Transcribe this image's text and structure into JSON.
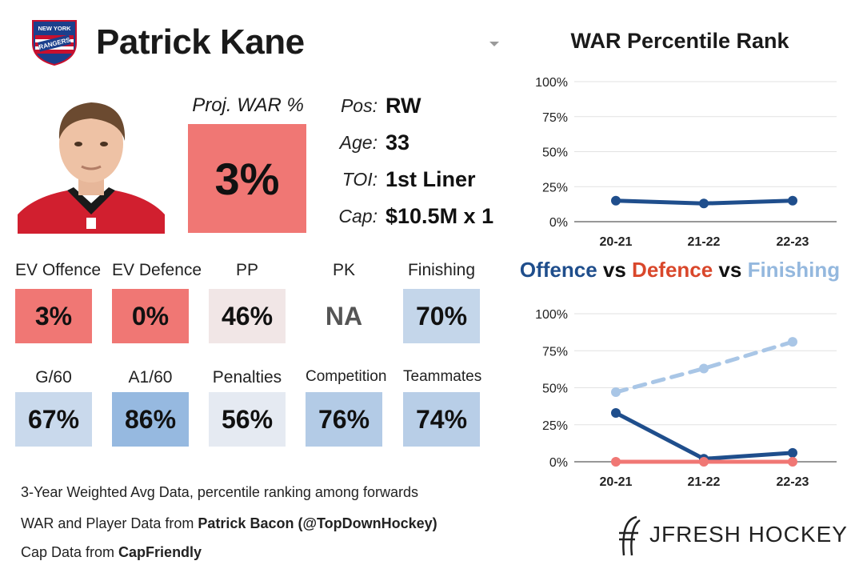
{
  "header": {
    "logo_text_top": "NEW YORK",
    "logo_text_main": "RANGERS",
    "player_name": "Patrick Kane"
  },
  "projected": {
    "label": "Proj. WAR %",
    "value": "3%",
    "color": "#f07774"
  },
  "info": [
    {
      "label": "Pos:",
      "value": "RW"
    },
    {
      "label": "Age:",
      "value": "33"
    },
    {
      "label": "TOI:",
      "value": "1st Liner"
    },
    {
      "label": "Cap:",
      "value": "$10.5M x 1"
    }
  ],
  "metrics": [
    {
      "label": "EV Offence",
      "value": "3%",
      "color": "#f07774"
    },
    {
      "label": "EV Defence",
      "value": "0%",
      "color": "#f07774"
    },
    {
      "label": "PP",
      "value": "46%",
      "color": "#f1e6e6"
    },
    {
      "label": "PK",
      "value": "NA",
      "color": "#ffffff"
    },
    {
      "label": "Finishing",
      "value": "70%",
      "color": "#c4d6ea"
    },
    {
      "label": "G/60",
      "value": "67%",
      "color": "#c9d9ec"
    },
    {
      "label": "A1/60",
      "value": "86%",
      "color": "#96b9e0"
    },
    {
      "label": "Penalties",
      "value": "56%",
      "color": "#e5eaf2"
    },
    {
      "label": "Competition",
      "value": "76%",
      "color": "#b3cbe6"
    },
    {
      "label": "Teammates",
      "value": "74%",
      "color": "#b8cee7"
    }
  ],
  "footer": {
    "line1": "3-Year Weighted Avg Data, percentile ranking among forwards",
    "line2_prefix": "WAR and Player Data from ",
    "line2_bold": "Patrick Bacon (@TopDownHockey)",
    "line3_prefix": "Cap Data from ",
    "line3_bold": "CapFriendly",
    "brand": "JFRESH HOCKEY"
  },
  "chart_data": [
    {
      "type": "line",
      "title": "WAR Percentile Rank",
      "x": [
        "20-21",
        "21-22",
        "22-23"
      ],
      "ylim": [
        0,
        100
      ],
      "yticks": [
        "0%",
        "25%",
        "50%",
        "75%",
        "100%"
      ],
      "grid": true,
      "series": [
        {
          "values": [
            15,
            13,
            15
          ],
          "color": "#1f4e8c",
          "dash": false
        }
      ]
    },
    {
      "type": "line",
      "title_parts": [
        {
          "text": "Offence",
          "color": "#1f4e8c"
        },
        {
          "text": " vs ",
          "color": "#111111"
        },
        {
          "text": "Defence",
          "color": "#d9472b"
        },
        {
          "text": " vs ",
          "color": "#111111"
        },
        {
          "text": "Finishing",
          "color": "#94b8de"
        }
      ],
      "x": [
        "20-21",
        "21-22",
        "22-23"
      ],
      "ylim": [
        0,
        100
      ],
      "yticks": [
        "0%",
        "25%",
        "50%",
        "75%",
        "100%"
      ],
      "grid": true,
      "series": [
        {
          "name": "Offence",
          "values": [
            33,
            2,
            6
          ],
          "color": "#1f4e8c",
          "dash": false
        },
        {
          "name": "Defence",
          "values": [
            0,
            0,
            0
          ],
          "color": "#f07774",
          "dash": false
        },
        {
          "name": "Finishing",
          "values": [
            47,
            63,
            81
          ],
          "color": "#a9c6e6",
          "dash": true
        }
      ]
    }
  ]
}
